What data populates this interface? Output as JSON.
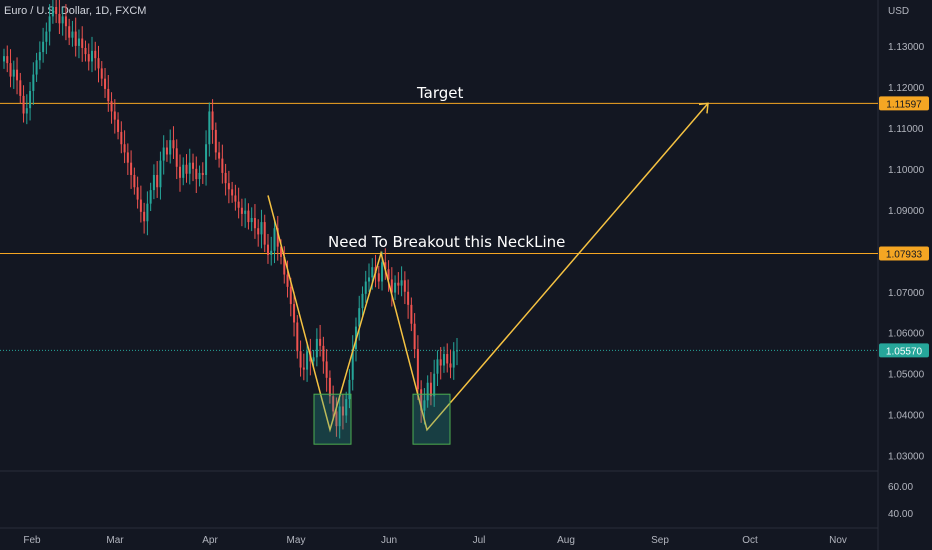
{
  "header": {
    "symbol_title": "Euro / U.S. Dollar, 1D, FXCM"
  },
  "chart_data": {
    "type": "candlestick",
    "currency_label": "USD",
    "price_ticks": [
      "1.13000",
      "1.12000",
      "1.11000",
      "1.10000",
      "1.09000",
      "1.08000",
      "1.07000",
      "1.06000",
      "1.05000",
      "1.04000",
      "1.03000"
    ],
    "volume_ticks": [
      "60.00",
      "40.00"
    ],
    "x_ticks": [
      "Feb",
      "Mar",
      "Apr",
      "May",
      "Jun",
      "Jul",
      "Aug",
      "Sep",
      "Oct",
      "Nov"
    ],
    "price_range": [
      1.0265,
      1.1412
    ],
    "horizontal_lines": [
      {
        "name": "target-line",
        "price": 1.11597,
        "label": "1.11597",
        "color": "#f5a623"
      },
      {
        "name": "neckline",
        "price": 1.07933,
        "label": "1.07933",
        "color": "#f5a623"
      }
    ],
    "last_price": {
      "value": 1.0557,
      "label": "1.05570",
      "color": "#26a69a"
    },
    "annotations": [
      {
        "name": "target-text",
        "text": "Target"
      },
      {
        "name": "neckline-text",
        "text": "Need To Breakout this NeckLine"
      }
    ],
    "closes": [
      1.1275,
      1.1258,
      1.1225,
      1.1242,
      1.1216,
      1.1178,
      1.1135,
      1.1148,
      1.119,
      1.123,
      1.1265,
      1.1285,
      1.131,
      1.1335,
      1.1372,
      1.1395,
      1.1378,
      1.1355,
      1.1372,
      1.1348,
      1.132,
      1.1335,
      1.13,
      1.1318,
      1.1295,
      1.128,
      1.1262,
      1.1288,
      1.127,
      1.1245,
      1.122,
      1.1195,
      1.1165,
      1.114,
      1.112,
      1.109,
      1.106,
      1.104,
      1.1015,
      1.0985,
      1.0955,
      1.0925,
      1.0895,
      1.0872,
      1.0915,
      1.0948,
      1.0985,
      1.0955,
      1.102,
      1.1052,
      1.1035,
      1.107,
      1.105,
      1.1005,
      1.0978,
      1.101,
      1.0988,
      1.1015,
      1.1,
      1.0975,
      1.099,
      1.0985,
      1.106,
      1.114,
      1.1095,
      1.104,
      1.1025,
      1.099,
      1.0965,
      1.095,
      1.0935,
      1.092,
      1.0905,
      1.089,
      1.0898,
      1.087,
      1.088,
      1.0855,
      1.084,
      1.087,
      1.0815,
      1.079,
      1.08,
      1.0855,
      1.081,
      1.0785,
      1.0742,
      1.0712,
      1.067,
      1.0625,
      1.0555,
      1.0515,
      1.051,
      1.0555,
      1.053,
      1.054,
      1.0585,
      1.0568,
      1.053,
      1.049,
      1.0445,
      1.0408,
      1.0372,
      1.042,
      1.0398,
      1.0438,
      1.0485,
      1.056,
      1.0615,
      1.066,
      1.0695,
      1.0725,
      1.0735,
      1.076,
      1.0745,
      1.0725,
      1.0772,
      1.0755,
      1.073,
      1.0698,
      1.0722,
      1.0715,
      1.0728,
      1.07,
      1.0668,
      1.0622,
      1.056,
      1.0462,
      1.041,
      1.0435,
      1.0478,
      1.0445,
      1.05,
      1.0535,
      1.052,
      1.0548,
      1.0525,
      1.0515,
      1.0555,
      1.0557
    ]
  }
}
